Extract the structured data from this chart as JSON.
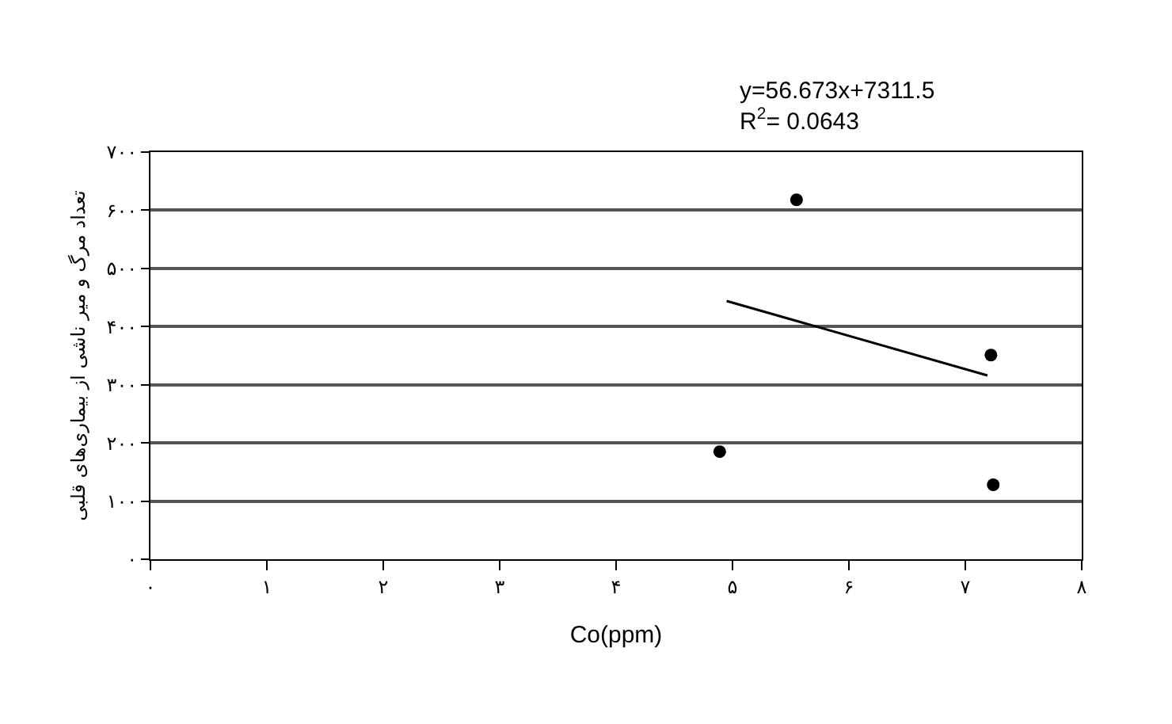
{
  "chart_data": {
    "type": "scatter",
    "xlabel": "Co(ppm)",
    "ylabel": "تعداد مرگ و میر ناشی از بیماری‌های قلبی",
    "annotations": [
      "y=56.673x+7311.5",
      "R$^{2}$= 0.0643"
    ],
    "series": [
      {
        "color": "#000000",
        "x": [
          4.89,
          5.55,
          7.22,
          7.24
        ],
        "values": [
          185,
          618,
          351,
          128
        ],
        "marker": "circle"
      },
      {
        "type": "line",
        "color": "#000000",
        "x": [
          4.95,
          7.19
        ],
        "values": [
          444,
          316
        ],
        "marker": "none",
        "line_style": "solid"
      }
    ],
    "xlim": [
      0,
      8
    ],
    "ylim": [
      0,
      700
    ],
    "xticks": [
      {
        "value": 0,
        "label": "۰"
      },
      {
        "value": 1,
        "label": "۱"
      },
      {
        "value": 2,
        "label": "۲"
      },
      {
        "value": 3,
        "label": "۳"
      },
      {
        "value": 4,
        "label": "۴"
      },
      {
        "value": 5,
        "label": "۵"
      },
      {
        "value": 6,
        "label": "۶"
      },
      {
        "value": 7,
        "label": "۷"
      },
      {
        "value": 8,
        "label": "۸"
      }
    ],
    "yticks": [
      {
        "value": 0,
        "label": "۰"
      },
      {
        "value": 100,
        "label": "۱۰۰"
      },
      {
        "value": 200,
        "label": "۲۰۰"
      },
      {
        "value": 300,
        "label": "۳۰۰"
      },
      {
        "value": 400,
        "label": "۴۰۰"
      },
      {
        "value": 500,
        "label": "۵۰۰"
      },
      {
        "value": 600,
        "label": "۶۰۰"
      },
      {
        "value": 700,
        "label": "۷۰۰"
      }
    ],
    "grid": "y"
  }
}
